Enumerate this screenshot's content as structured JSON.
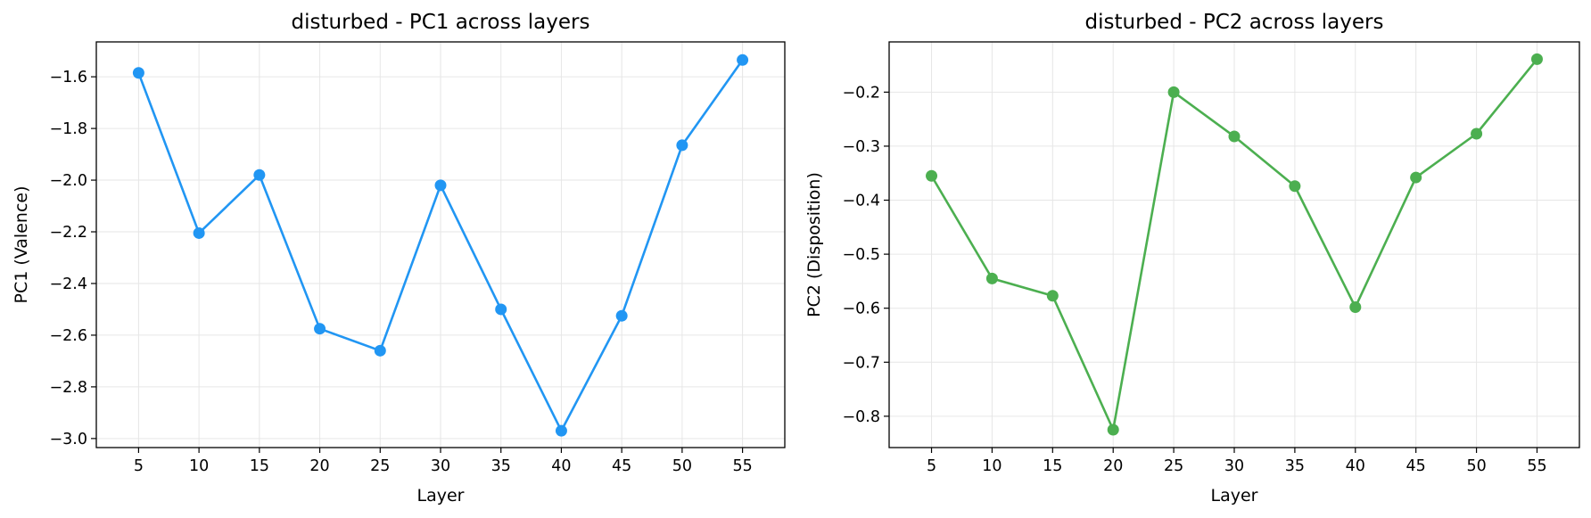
{
  "chart_data": [
    {
      "type": "line",
      "title": "disturbed - PC1 across layers",
      "xlabel": "Layer",
      "ylabel": "PC1 (Valence)",
      "x": [
        5,
        10,
        15,
        20,
        25,
        30,
        35,
        40,
        45,
        50,
        55
      ],
      "xticks": [
        "5",
        "10",
        "15",
        "20",
        "25",
        "30",
        "35",
        "40",
        "45",
        "50",
        "55"
      ],
      "xlim": [
        1.5,
        58.5
      ],
      "ylim": [
        -3.035,
        -1.465
      ],
      "yticks": [
        -1.6,
        -1.8,
        -2.0,
        -2.2,
        -2.4,
        -2.6,
        -2.8,
        -3.0
      ],
      "ytick_labels": [
        "−1.6",
        "−1.8",
        "−2.0",
        "−2.2",
        "−2.4",
        "−2.6",
        "−2.8",
        "−3.0"
      ],
      "grid": true,
      "series": [
        {
          "values": [
            -1.585,
            -2.205,
            -1.98,
            -2.575,
            -2.66,
            -2.02,
            -2.5,
            -2.97,
            -2.525,
            -1.865,
            -1.535
          ],
          "color": "#2196F3"
        }
      ]
    },
    {
      "type": "line",
      "title": "disturbed - PC2 across layers",
      "xlabel": "Layer",
      "ylabel": "PC2 (Disposition)",
      "x": [
        5,
        10,
        15,
        20,
        25,
        30,
        35,
        40,
        45,
        50,
        55
      ],
      "xticks": [
        "5",
        "10",
        "15",
        "20",
        "25",
        "30",
        "35",
        "40",
        "45",
        "50",
        "55"
      ],
      "xlim": [
        1.5,
        58.5
      ],
      "ylim": [
        -0.858,
        -0.107
      ],
      "yticks": [
        -0.2,
        -0.3,
        -0.4,
        -0.5,
        -0.6,
        -0.7,
        -0.8
      ],
      "ytick_labels": [
        "−0.2",
        "−0.3",
        "−0.4",
        "−0.5",
        "−0.6",
        "−0.7",
        "−0.8"
      ],
      "grid": true,
      "series": [
        {
          "values": [
            -0.355,
            -0.545,
            -0.577,
            -0.825,
            -0.2,
            -0.282,
            -0.374,
            -0.598,
            -0.358,
            -0.277,
            -0.139
          ],
          "color": "#4CAF50"
        }
      ]
    }
  ]
}
